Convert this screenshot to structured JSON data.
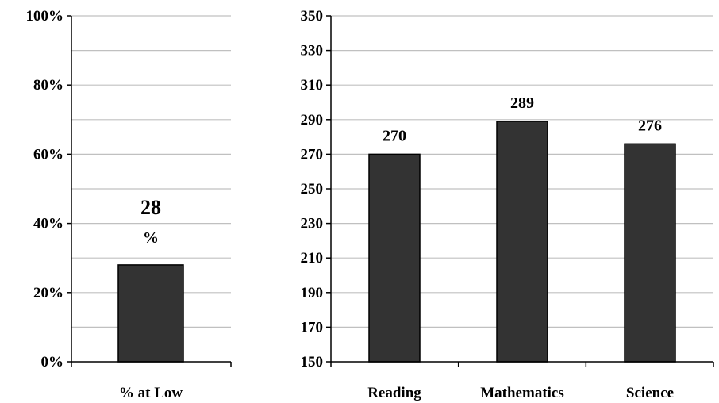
{
  "colors": {
    "bar": "#333333",
    "grid": "#c0c0c0",
    "axis": "#000000",
    "background": "#ffffff"
  },
  "chart_data": [
    {
      "type": "bar",
      "title": "",
      "xlabel": "",
      "ylabel": "",
      "categories": [
        "% at Low"
      ],
      "values": [
        28
      ],
      "value_labels": [
        "28",
        "%"
      ],
      "ylim": [
        0,
        100
      ],
      "y_ticks": [
        "0%",
        "20%",
        "40%",
        "60%",
        "80%",
        "100%"
      ],
      "y_tick_values": [
        0,
        20,
        40,
        60,
        80,
        100
      ],
      "minor_step": 10,
      "grid": true,
      "legend": "none"
    },
    {
      "type": "bar",
      "title": "",
      "xlabel": "",
      "ylabel": "",
      "categories": [
        "Reading",
        "Mathematics",
        "Science"
      ],
      "values": [
        270,
        289,
        276
      ],
      "value_labels": [
        "270",
        "289",
        "276"
      ],
      "ylim": [
        150,
        350
      ],
      "y_ticks": [
        "150",
        "170",
        "190",
        "210",
        "230",
        "250",
        "270",
        "290",
        "310",
        "330",
        "350"
      ],
      "y_tick_values": [
        150,
        170,
        190,
        210,
        230,
        250,
        270,
        290,
        310,
        330,
        350
      ],
      "minor_step": 20,
      "grid": true,
      "legend": "none"
    }
  ]
}
